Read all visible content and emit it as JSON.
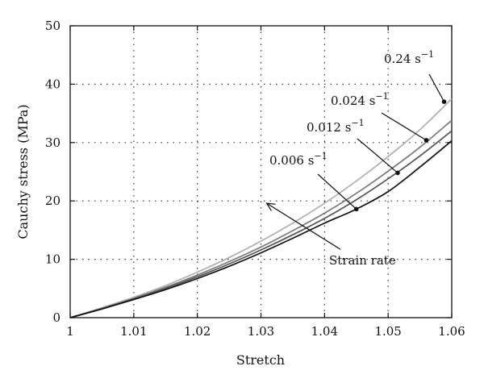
{
  "chart_data": {
    "type": "line",
    "xlabel": "Stretch",
    "ylabel": "Cauchy stress (MPa)",
    "xlim": [
      1,
      1.06
    ],
    "ylim": [
      0,
      50
    ],
    "xticks": [
      1,
      1.01,
      1.02,
      1.03,
      1.04,
      1.05,
      1.06
    ],
    "xtick_labels": [
      "1",
      "1.01",
      "1.02",
      "1.03",
      "1.04",
      "1.05",
      "1.06"
    ],
    "yticks": [
      0,
      10,
      20,
      30,
      40,
      50
    ],
    "ytick_labels": [
      "0",
      "10",
      "20",
      "30",
      "40",
      "50"
    ],
    "grid": true,
    "series": [
      {
        "name": "0.006 s",
        "superscript": "−1",
        "color": "#111111",
        "x": [
          1,
          1.005,
          1.01,
          1.015,
          1.02,
          1.025,
          1.03,
          1.035,
          1.04,
          1.045,
          1.05,
          1.055,
          1.06
        ],
        "y": [
          0,
          1.5,
          3.1,
          4.8,
          6.7,
          8.8,
          11.1,
          13.6,
          16.2,
          18.6,
          21.6,
          25.8,
          30.3
        ],
        "marker": {
          "x": 1.045,
          "y": 18.6
        }
      },
      {
        "name": "0.012 s",
        "superscript": "−1",
        "color": "#555555",
        "x": [
          1,
          1.005,
          1.01,
          1.015,
          1.02,
          1.025,
          1.03,
          1.035,
          1.04,
          1.045,
          1.05,
          1.055,
          1.06
        ],
        "y": [
          0,
          1.5,
          3.2,
          5.0,
          7.0,
          9.2,
          11.6,
          14.2,
          17.0,
          20.2,
          23.8,
          27.7,
          32.0
        ],
        "marker": {
          "x": 1.0515,
          "y": 24.8
        }
      },
      {
        "name": "0.024 s",
        "superscript": "−1",
        "color": "#7a7a7a",
        "x": [
          1,
          1.005,
          1.01,
          1.015,
          1.02,
          1.025,
          1.03,
          1.035,
          1.04,
          1.045,
          1.05,
          1.055,
          1.06
        ],
        "y": [
          0,
          1.6,
          3.3,
          5.2,
          7.3,
          9.6,
          12.1,
          14.9,
          17.9,
          21.3,
          25.1,
          29.2,
          33.8
        ],
        "marker": {
          "x": 1.056,
          "y": 30.4
        }
      },
      {
        "name": "0.24 s",
        "superscript": "−1",
        "color": "#b0b0b0",
        "x": [
          1,
          1.005,
          1.01,
          1.015,
          1.02,
          1.025,
          1.03,
          1.035,
          1.04,
          1.045,
          1.05,
          1.055,
          1.06
        ],
        "y": [
          0,
          1.7,
          3.5,
          5.5,
          7.8,
          10.3,
          13.1,
          16.2,
          19.6,
          23.4,
          27.6,
          32.2,
          37.5
        ],
        "marker": {
          "x": 1.0588,
          "y": 37.0
        }
      }
    ],
    "annotation": {
      "text": "Strain rate",
      "arrow_from": {
        "x": 1.0425,
        "y": 11.7
      },
      "arrow_to": {
        "x": 1.0309,
        "y": 19.6
      }
    }
  }
}
